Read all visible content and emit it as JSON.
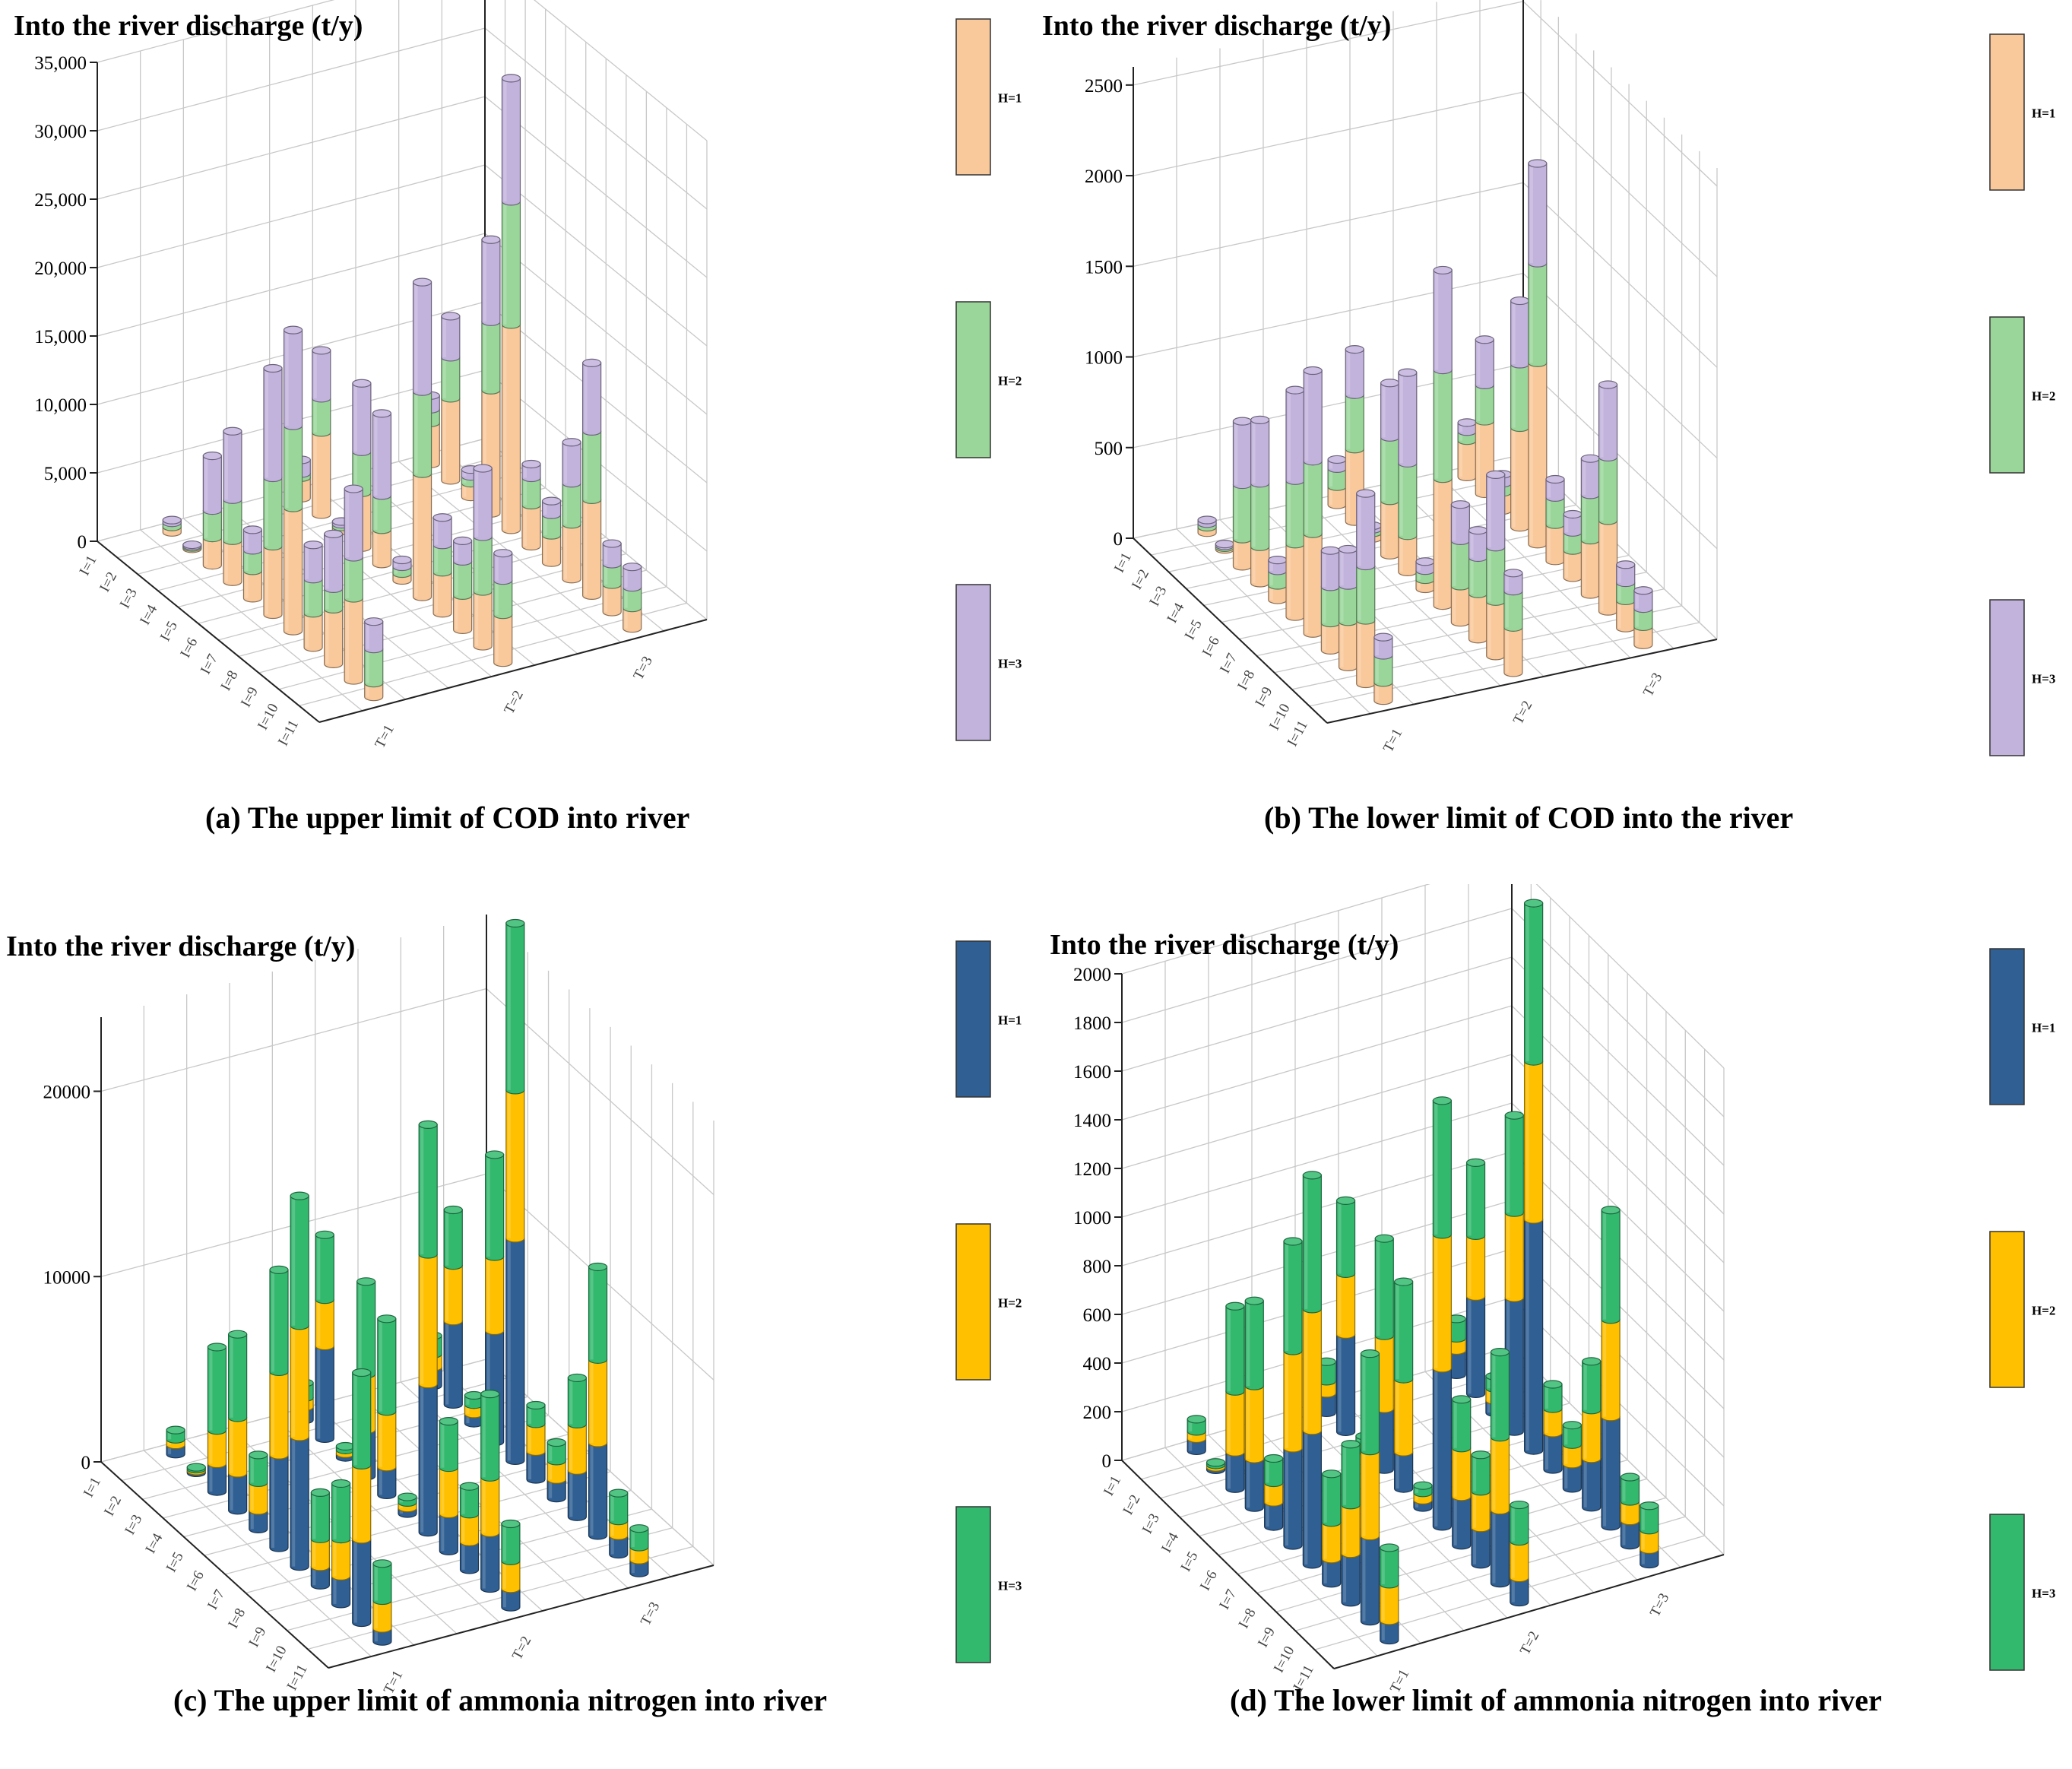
{
  "figure": {
    "x_categories": [
      "I=1",
      "I=2",
      "I=3",
      "I=4",
      "I=5",
      "I=6",
      "I=7",
      "I=8",
      "I=9",
      "I=10",
      "I=11"
    ],
    "t_categories": [
      "T=1",
      "T=2",
      "T=3"
    ]
  },
  "chart_data": [
    {
      "id": "a",
      "type": "bar",
      "subtype": "3d-stacked",
      "title": "(a)  The upper limit of COD into river",
      "ylabel": "Into the river discharge (t/y)",
      "ylim": [
        0,
        35000
      ],
      "yticks": [
        "0",
        "5,000",
        "10,000",
        "15,000",
        "20,000",
        "25,000",
        "30,000",
        "35,000"
      ],
      "ytick_values": [
        0,
        5000,
        10000,
        15000,
        20000,
        25000,
        30000,
        35000
      ],
      "legend": [
        {
          "label": "H=1",
          "color": "#f9c89b"
        },
        {
          "label": "H=2",
          "color": "#9ad69a"
        },
        {
          "label": "H=3",
          "color": "#c2b3dd"
        }
      ],
      "series": [
        {
          "name": "H=1",
          "values": [
            [
              400,
              100,
              2000,
              3000,
              2000,
              5000,
              9000,
              2500,
              4000,
              6000,
              1000
            ],
            [
              1500,
              6000,
              300,
              4000,
              2500,
              500,
              9000,
              3000,
              2500,
              4000,
              3500
            ],
            [
              3000,
              6000,
              1000,
              9000,
              15000,
              3000,
              2000,
              4000,
              7000,
              2000,
              1500
            ]
          ]
        },
        {
          "name": "H=2",
          "values": [
            [
              300,
              100,
              2000,
              3000,
              1500,
              5000,
              6000,
              2500,
              1500,
              3000,
              2500
            ],
            [
              300,
              2500,
              200,
              3000,
              2500,
              500,
              6000,
              2000,
              2500,
              4000,
              2500
            ],
            [
              1000,
              3000,
              500,
              5000,
              9000,
              2000,
              1500,
              3000,
              5000,
              1500,
              1500
            ]
          ]
        },
        {
          "name": "H=3",
          "values": [
            [
              200,
              100,
              4000,
              5000,
              1500,
              8000,
              7000,
              2500,
              4000,
              5000,
              2000
            ],
            [
              1000,
              3500,
              200,
              5000,
              6000,
              500,
              8000,
              2000,
              1500,
              5000,
              2000
            ],
            [
              1000,
              3000,
              500,
              6000,
              9000,
              1000,
              1000,
              3000,
              5000,
              1500,
              1500
            ]
          ]
        }
      ]
    },
    {
      "id": "b",
      "type": "bar",
      "subtype": "3d-stacked",
      "title": "(b)  The lower limit of COD into the river",
      "ylabel": "Into the river discharge (t/y)",
      "ylim": [
        0,
        2600
      ],
      "yticks": [
        "0",
        "500",
        "1000",
        "1500",
        "2000",
        "2500"
      ],
      "ytick_values": [
        0,
        500,
        1000,
        1500,
        2000,
        2500
      ],
      "legend": [
        {
          "label": "H=1",
          "color": "#f9c89b"
        },
        {
          "label": "H=2",
          "color": "#9ad69a"
        },
        {
          "label": "H=3",
          "color": "#c2b3dd"
        }
      ],
      "series": [
        {
          "name": "H=1",
          "values": [
            [
              30,
              10,
              150,
              200,
              80,
              400,
              550,
              150,
              250,
              350,
              100
            ],
            [
              100,
              400,
              30,
              300,
              200,
              50,
              700,
              200,
              250,
              300,
              250
            ],
            [
              200,
              400,
              100,
              550,
              1000,
              200,
              150,
              300,
              500,
              150,
              100
            ]
          ]
        },
        {
          "name": "H=2",
          "values": [
            [
              20,
              10,
              300,
              350,
              80,
              350,
              400,
              200,
              200,
              300,
              150
            ],
            [
              100,
              300,
              20,
              350,
              400,
              50,
              600,
              250,
              200,
              300,
              200
            ],
            [
              50,
              200,
              50,
              350,
              550,
              150,
              100,
              250,
              350,
              100,
              100
            ]
          ]
        },
        {
          "name": "H=3",
          "values": [
            [
              20,
              10,
              350,
              350,
              60,
              500,
              500,
              200,
              200,
              400,
              100
            ],
            [
              50,
              250,
              20,
              300,
              500,
              50,
              550,
              200,
              150,
              400,
              100
            ],
            [
              50,
              250,
              50,
              350,
              550,
              100,
              100,
              200,
              400,
              100,
              100
            ]
          ]
        }
      ]
    },
    {
      "id": "c",
      "type": "bar",
      "subtype": "3d-stacked",
      "title": "(c)  The upper limit of ammonia nitrogen into river",
      "ylabel": "Into the river discharge (t/y)",
      "ylim": [
        0,
        24000
      ],
      "yticks": [
        "0",
        "10000",
        "20000"
      ],
      "ytick_values": [
        0,
        10000,
        20000
      ],
      "legend": [
        {
          "label": "H=1",
          "color": "#2f5f93"
        },
        {
          "label": "H=2",
          "color": "#ffc000"
        },
        {
          "label": "H=3",
          "color": "#33b96e"
        }
      ],
      "series": [
        {
          "name": "H=1",
          "values": [
            [
              500,
              100,
              1500,
              2000,
              1000,
              5000,
              7000,
              1000,
              1500,
              4500,
              700
            ],
            [
              700,
              5000,
              200,
              2500,
              1500,
              300,
              8000,
              2000,
              1500,
              3000,
              1000
            ],
            [
              1000,
              4500,
              500,
              6000,
              12000,
              1500,
              1000,
              2500,
              5000,
              1000,
              700
            ]
          ]
        },
        {
          "name": "H=2",
          "values": [
            [
              300,
              100,
              1800,
              3000,
              1500,
              4500,
              6000,
              1500,
              2000,
              4000,
              1500
            ],
            [
              500,
              2500,
              200,
              3000,
              3000,
              300,
              7000,
              2500,
              1500,
              3000,
              1500
            ],
            [
              700,
              3000,
              500,
              4000,
              8000,
              1500,
              1000,
              2500,
              4500,
              800,
              700
            ]
          ]
        },
        {
          "name": "H=3",
          "values": [
            [
              500,
              100,
              4500,
              4500,
              1500,
              5500,
              7000,
              2500,
              3000,
              5000,
              2000
            ],
            [
              800,
              3500,
              200,
              5000,
              5000,
              300,
              7000,
              2500,
              1500,
              4500,
              2000
            ],
            [
              1000,
              3000,
              500,
              5500,
              9000,
              1000,
              1000,
              2500,
              5000,
              1500,
              1000
            ]
          ]
        }
      ]
    },
    {
      "id": "d",
      "type": "bar",
      "subtype": "3d-stacked",
      "title": "(d)  The lower limit of ammonia nitrogen into river",
      "ylabel": "Into the river discharge (t/y)",
      "ylim": [
        0,
        2000
      ],
      "yticks": [
        "0",
        "200",
        "400",
        "600",
        "800",
        "1000",
        "1200",
        "1400",
        "1600",
        "1800",
        "2000"
      ],
      "ytick_values": [
        0,
        200,
        400,
        600,
        800,
        1000,
        1200,
        1400,
        1600,
        1800,
        2000
      ],
      "legend": [
        {
          "label": "H=1",
          "color": "#2f5f93"
        },
        {
          "label": "H=2",
          "color": "#ffc000"
        },
        {
          "label": "H=3",
          "color": "#33b96e"
        }
      ],
      "series": [
        {
          "name": "H=1",
          "values": [
            [
              50,
              10,
              150,
              200,
              100,
              400,
              550,
              100,
              200,
              350,
              80
            ],
            [
              80,
              400,
              20,
              250,
              150,
              30,
              650,
              200,
              150,
              300,
              100
            ],
            [
              100,
              400,
              50,
              550,
              950,
              150,
              100,
              200,
              450,
              100,
              60
            ]
          ]
        },
        {
          "name": "H=2",
          "values": [
            [
              30,
              10,
              250,
              300,
              80,
              400,
              500,
              150,
              200,
              350,
              150
            ],
            [
              50,
              250,
              20,
              300,
              300,
              30,
              550,
              200,
              150,
              300,
              150
            ],
            [
              50,
              250,
              50,
              350,
              650,
              100,
              80,
              200,
              400,
              80,
              80
            ]
          ]
        },
        {
          "name": "H=3",
          "values": [
            [
              50,
              10,
              350,
              350,
              100,
              450,
              550,
              200,
              250,
              400,
              150
            ],
            [
              80,
              300,
              20,
              400,
              400,
              30,
              550,
              200,
              150,
              350,
              150
            ],
            [
              80,
              300,
              50,
              400,
              650,
              100,
              80,
              200,
              450,
              100,
              100
            ]
          ]
        }
      ]
    }
  ]
}
